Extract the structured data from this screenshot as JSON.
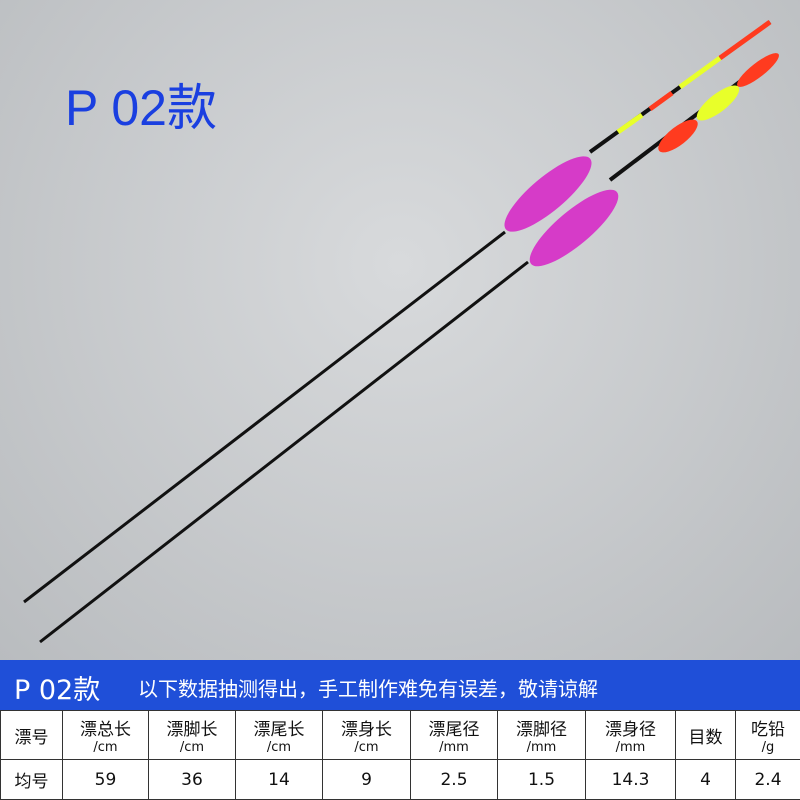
{
  "header": {
    "title": "P 02款"
  },
  "banner": {
    "model": "P 02款",
    "note": "以下数据抽测得出，手工制作难免有误差，敬请谅解"
  },
  "table": {
    "header": [
      {
        "name": "漂号"
      },
      {
        "name": "漂总长",
        "unit": "/cm"
      },
      {
        "name": "漂脚长",
        "unit": "/cm"
      },
      {
        "name": "漂尾长",
        "unit": "/cm"
      },
      {
        "name": "漂身长",
        "unit": "/cm"
      },
      {
        "name": "漂尾径",
        "unit": "/mm"
      },
      {
        "name": "漂脚径",
        "unit": "/mm"
      },
      {
        "name": "漂身径",
        "unit": "/mm"
      },
      {
        "name": "目数"
      },
      {
        "name": "吃铅",
        "unit": "/g"
      }
    ],
    "rows": [
      [
        "均号",
        "59",
        "36",
        "14",
        "9",
        "2.5",
        "1.5",
        "14.3",
        "4",
        "2.4"
      ]
    ]
  }
}
